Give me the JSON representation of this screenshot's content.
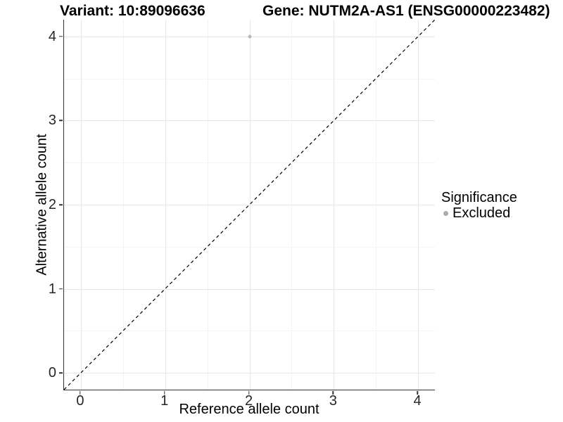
{
  "chart_data": {
    "type": "scatter",
    "title_left": "Variant: 10:89096636",
    "title_right": "Gene: NUTM2A-AS1 (ENSG00000223482)",
    "xlabel": "Reference allele count",
    "ylabel": "Alternative allele count",
    "xlim": [
      -0.2,
      4.2
    ],
    "ylim": [
      -0.2,
      4.2
    ],
    "x_ticks": [
      0,
      1,
      2,
      3,
      4
    ],
    "y_ticks": [
      0,
      1,
      2,
      3,
      4
    ],
    "x_minor_ticks": [
      0.5,
      1.5,
      2.5,
      3.5
    ],
    "y_minor_ticks": [
      0.5,
      1.5,
      2.5,
      3.5
    ],
    "grid": "major+minor",
    "series": [
      {
        "name": "Excluded",
        "color": "#b8b8b8",
        "points": [
          [
            2,
            4
          ]
        ]
      }
    ],
    "identity_line": {
      "style": "dashed",
      "color": "#000000"
    },
    "legend": {
      "position": "right",
      "title": "Significance",
      "entries": [
        {
          "label": "Excluded",
          "color": "#ababab"
        }
      ]
    }
  },
  "colors": {
    "axis_line": "#333333",
    "tick_label": "#262626",
    "grid_major": "#e8e8e8",
    "grid_minor": "#f4f4f4",
    "background": "#ffffff"
  }
}
